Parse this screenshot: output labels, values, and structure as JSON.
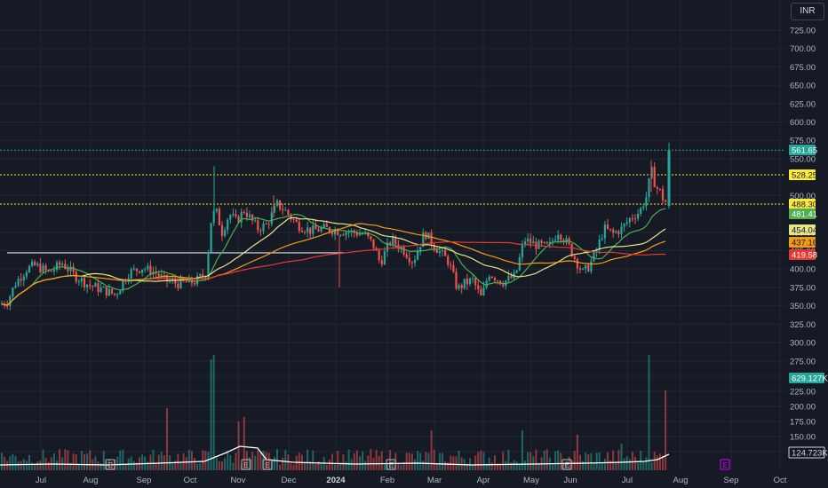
{
  "currency": "INR",
  "colors": {
    "background": "#161a25",
    "grid": "#232733",
    "up": "#26a69a",
    "down": "#ef5350",
    "ma_fast": "#e6e48a",
    "ma_mid": "#f39c12",
    "ma_slow": "#e53935",
    "ma_short": "#4caf50",
    "breakout_line": "#e0e3eb",
    "volume_avg": "#ffffff",
    "level_yellow": "#ffeb3b",
    "event_icon": "#b2b5be",
    "future_event_icon": "#d500f9"
  },
  "y_axis": {
    "labels": [
      "725.00",
      "700.00",
      "675.00",
      "650.00",
      "625.00",
      "600.00",
      "575.00",
      "550.00",
      "500.00",
      "450.00",
      "425.00",
      "400.00",
      "375.00",
      "350.00",
      "325.00",
      "300.00",
      "275.00",
      "250.00",
      "225.00",
      "200.00",
      "175.00",
      "150.00",
      "125.00"
    ],
    "price_range": [
      310,
      740
    ]
  },
  "x_axis": {
    "labels": [
      "Jul",
      "Aug",
      "Sep",
      "Oct",
      "Nov",
      "Dec",
      "2024",
      "Feb",
      "Mar",
      "Apr",
      "May",
      "Jun",
      "Jul",
      "Aug",
      "Sep",
      "Oct"
    ],
    "bold_label": "2024"
  },
  "price_labels": [
    {
      "text": "561.65",
      "value": 561.65,
      "bg": "#26a69a",
      "fg": "#ffffff"
    },
    {
      "text": "528.25",
      "value": 528.25,
      "bg": "#ffeb3b",
      "fg": "#131722"
    },
    {
      "text": "488.30",
      "value": 488.3,
      "bg": "#ffeb3b",
      "fg": "#131722"
    },
    {
      "text": "481.41",
      "value": 481.41,
      "bg": "#4caf50",
      "fg": "#ffffff"
    },
    {
      "text": "454.04",
      "value": 454.04,
      "bg": "#e6e48a",
      "fg": "#131722"
    },
    {
      "text": "437.16",
      "value": 437.16,
      "bg": "#f39c12",
      "fg": "#131722"
    },
    {
      "text": "419.58",
      "value": 419.58,
      "bg": "#e53935",
      "fg": "#ffffff"
    },
    {
      "text": "629.127K",
      "value": null,
      "bg": "#26a69a",
      "fg": "#ffffff"
    },
    {
      "text": "124.723K",
      "value": null,
      "bg": "#161a25",
      "fg": "#d1d4dc",
      "border": "#d1d4dc"
    }
  ],
  "event_markers": [
    "E",
    "E",
    "E",
    "E",
    "E",
    "E"
  ],
  "chart_data": {
    "type": "candlestick",
    "title": "",
    "currency": "INR",
    "horizontal_levels": [
      {
        "value": 561.65,
        "style": "dotted",
        "color": "#26a69a"
      },
      {
        "value": 528.25,
        "style": "dotted",
        "color": "#ffeb3b"
      },
      {
        "value": 488.3,
        "style": "dotted",
        "color": "#ffeb3b"
      }
    ],
    "breakout_line": {
      "value": 422,
      "from": "Jun 2023",
      "to": "Jan 2024"
    },
    "monthly_ohlc": [
      {
        "month": "Jun 2023",
        "open": 355,
        "high": 390,
        "low": 345,
        "close": 385
      },
      {
        "month": "Jul 2023",
        "open": 385,
        "high": 425,
        "low": 375,
        "close": 395
      },
      {
        "month": "Aug 2023",
        "open": 395,
        "high": 410,
        "low": 345,
        "close": 385
      },
      {
        "month": "Sep 2023",
        "open": 385,
        "high": 420,
        "low": 380,
        "close": 385
      },
      {
        "month": "Oct 2023",
        "open": 385,
        "high": 535,
        "low": 375,
        "close": 480
      },
      {
        "month": "Nov 2023",
        "open": 480,
        "high": 510,
        "low": 455,
        "close": 485
      },
      {
        "month": "Dec 2023",
        "open": 485,
        "high": 495,
        "low": 455,
        "close": 460
      },
      {
        "month": "Jan 2024",
        "open": 460,
        "high": 475,
        "low": 390,
        "close": 440
      },
      {
        "month": "Feb 2024",
        "open": 440,
        "high": 465,
        "low": 400,
        "close": 405
      },
      {
        "month": "Mar 2024",
        "open": 405,
        "high": 420,
        "low": 345,
        "close": 375
      },
      {
        "month": "Apr 2024",
        "open": 375,
        "high": 430,
        "low": 365,
        "close": 425
      },
      {
        "month": "May 2024",
        "open": 425,
        "high": 465,
        "low": 395,
        "close": 420
      },
      {
        "month": "Jun 2024",
        "open": 420,
        "high": 480,
        "low": 350,
        "close": 465
      },
      {
        "month": "Jul 2024",
        "open": 465,
        "high": 575,
        "low": 460,
        "close": 561.65
      }
    ],
    "moving_averages": [
      {
        "name": "ma_short",
        "last": 481.41
      },
      {
        "name": "ma_fast",
        "last": 454.04
      },
      {
        "name": "ma_mid",
        "last": 437.16
      },
      {
        "name": "ma_slow",
        "last": 419.58
      }
    ],
    "volume": {
      "last": "629.127K",
      "average": "124.723K"
    }
  }
}
